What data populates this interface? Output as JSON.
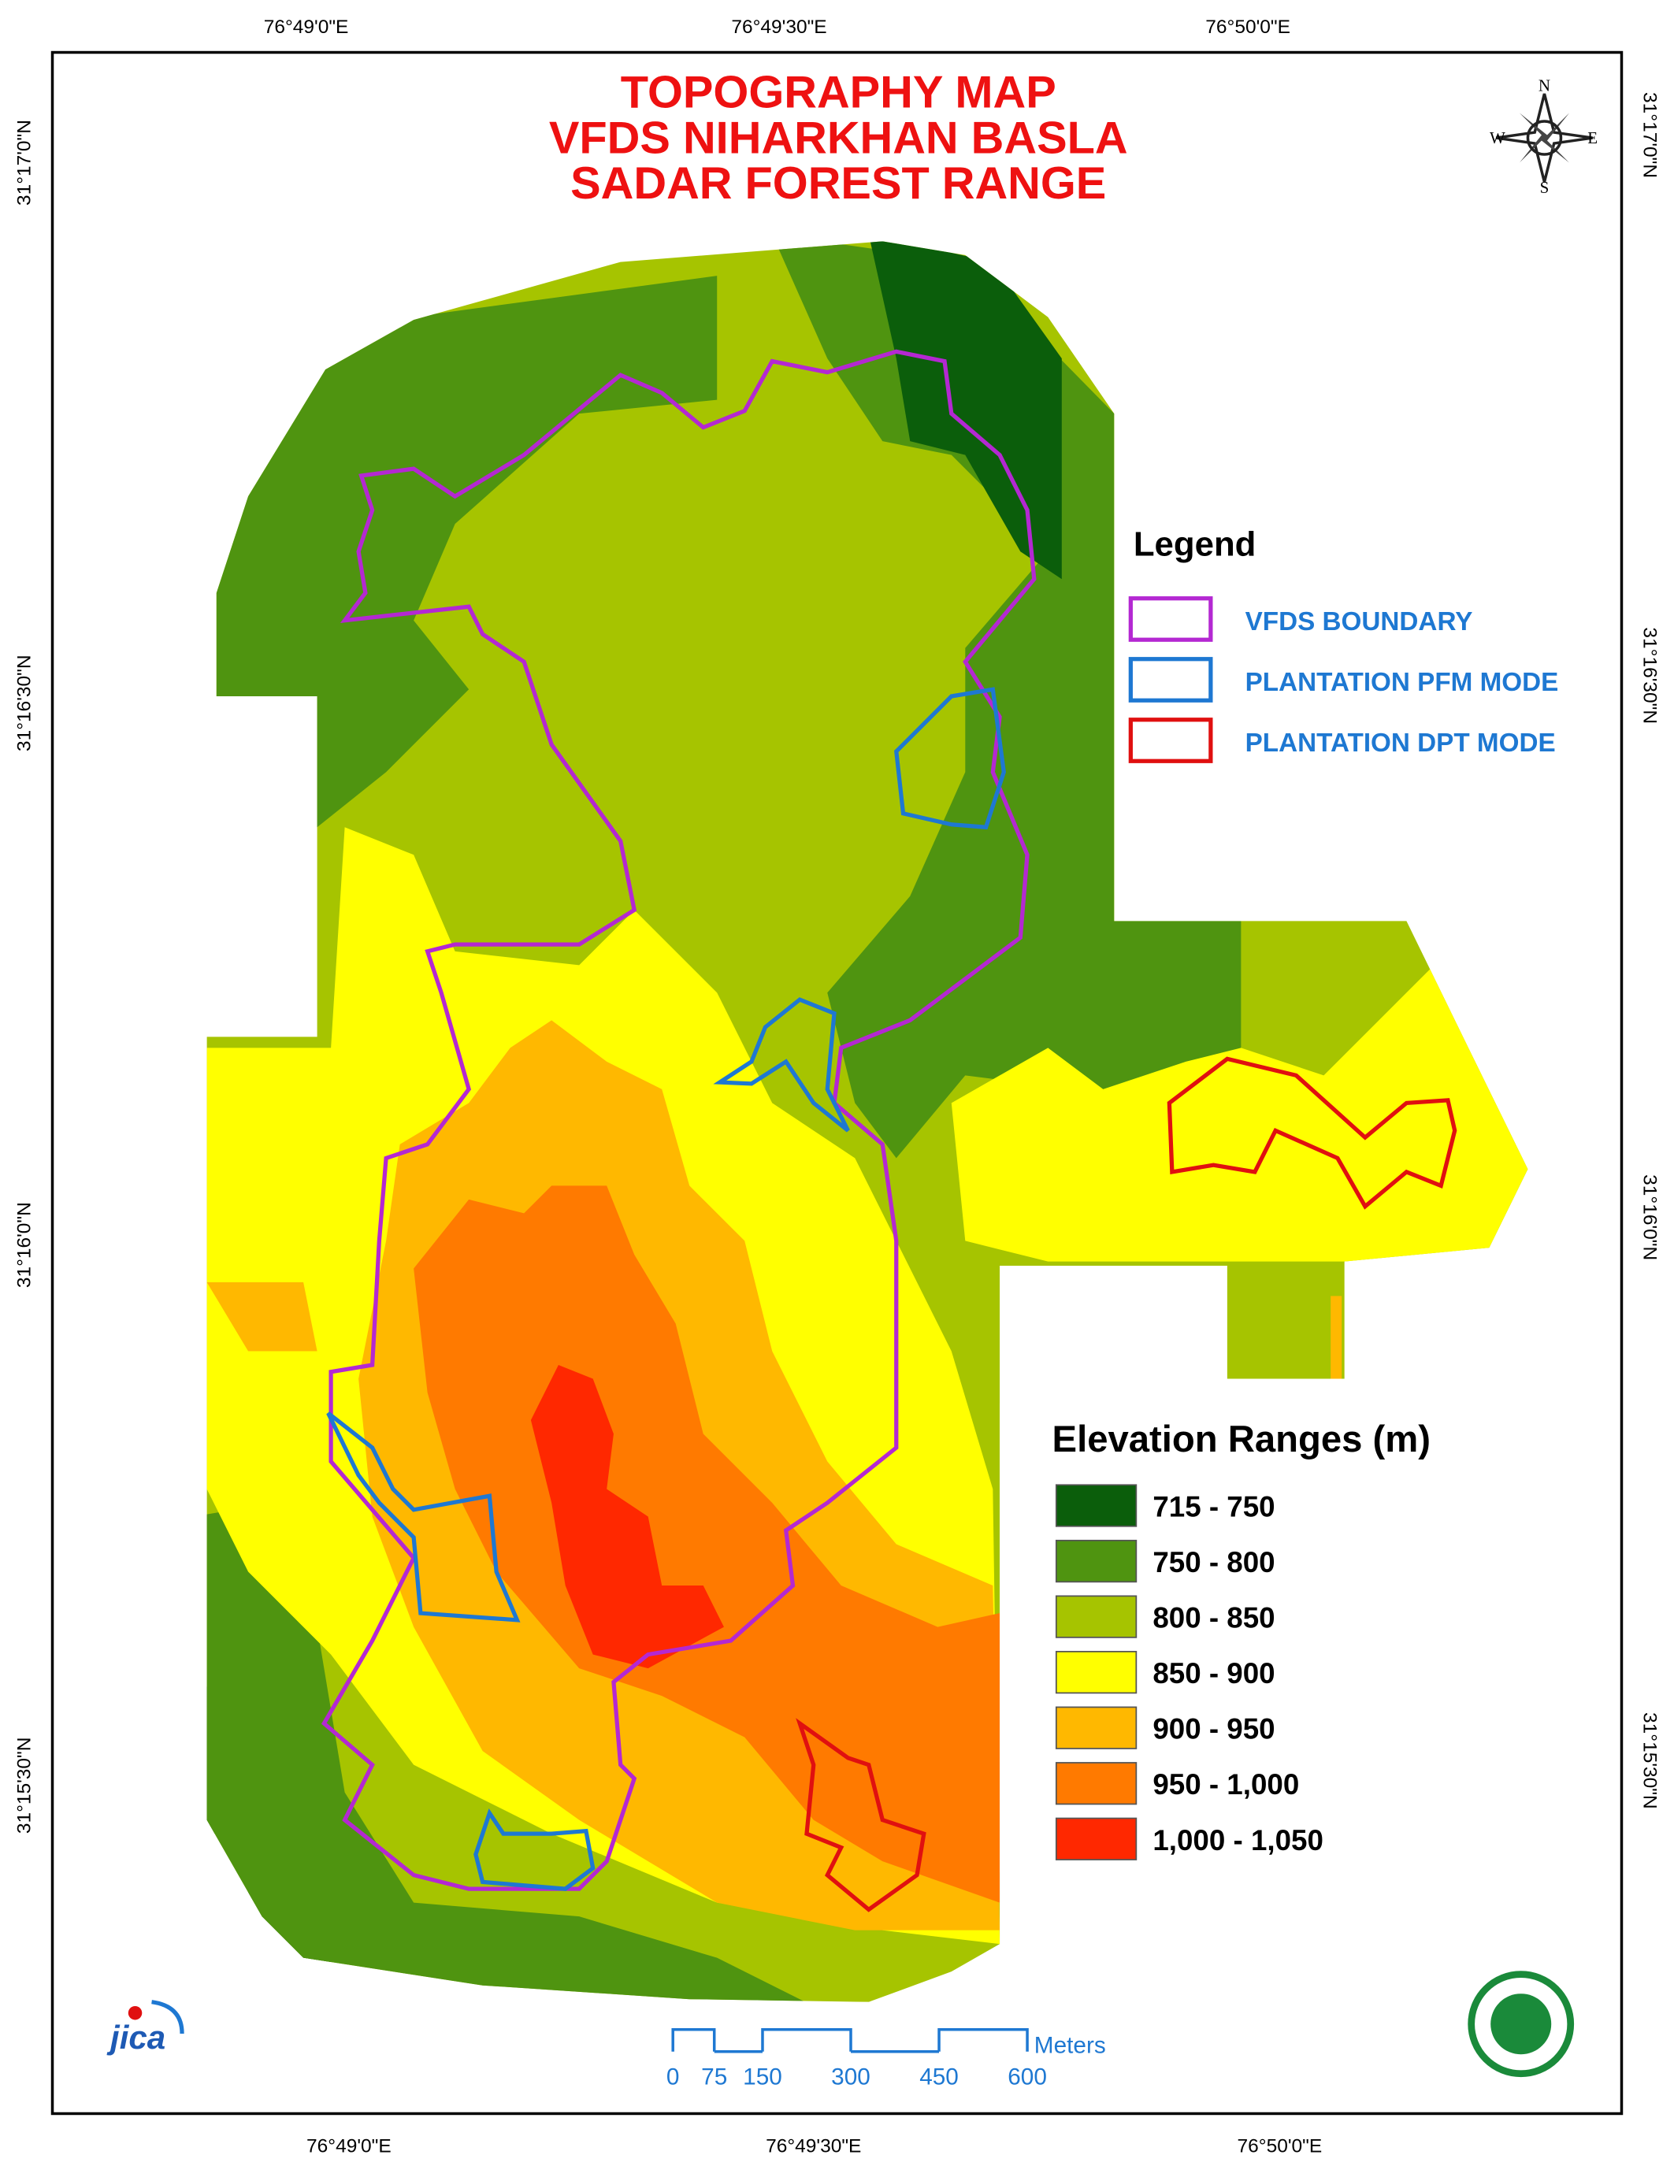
{
  "header": {
    "title_lines": [
      "TOPOGRAPHY MAP",
      "VFDS NIHARKHAN BASLA",
      "SADAR FOREST RANGE"
    ]
  },
  "coordinate_labels": {
    "top": [
      "76°49'0\"E",
      "76°49'30\"E",
      "76°50'0\"E"
    ],
    "bottom": [
      "76°49'0\"E",
      "76°49'30\"E",
      "76°50'0\"E"
    ],
    "left": [
      "31°17'0\"N",
      "31°16'30\"N",
      "31°16'0\"N",
      "31°15'30\"N"
    ],
    "right": [
      "31°17'0\"N",
      "31°16'30\"N",
      "31°16'0\"N",
      "31°15'30\"N"
    ]
  },
  "compass": {
    "north": "N",
    "east": "E",
    "south": "S",
    "west": "W"
  },
  "legend": {
    "title": "Legend",
    "items": [
      {
        "label": "VFDS BOUNDARY",
        "color": "#b428d2"
      },
      {
        "label": "PLANTATION PFM MODE",
        "color": "#1e78d2"
      },
      {
        "label": "PLANTATION DPT MODE",
        "color": "#e01010"
      }
    ]
  },
  "elevation": {
    "title": "Elevation Ranges (m)",
    "classes": [
      {
        "label": "715 - 750",
        "color": "#0b5e0b"
      },
      {
        "label": "750 - 800",
        "color": "#4f9410"
      },
      {
        "label": "800 - 850",
        "color": "#a6c400"
      },
      {
        "label": "850 - 900",
        "color": "#ffff00"
      },
      {
        "label": "900 - 950",
        "color": "#ffb800"
      },
      {
        "label": "950 - 1,000",
        "color": "#ff7a00"
      },
      {
        "label": "1,000 - 1,050",
        "color": "#ff2800"
      }
    ]
  },
  "scale_bar": {
    "labels": [
      "0",
      "75",
      "150",
      "300",
      "450",
      "600"
    ],
    "unit": "Meters"
  },
  "logos": {
    "jica": "jica"
  }
}
